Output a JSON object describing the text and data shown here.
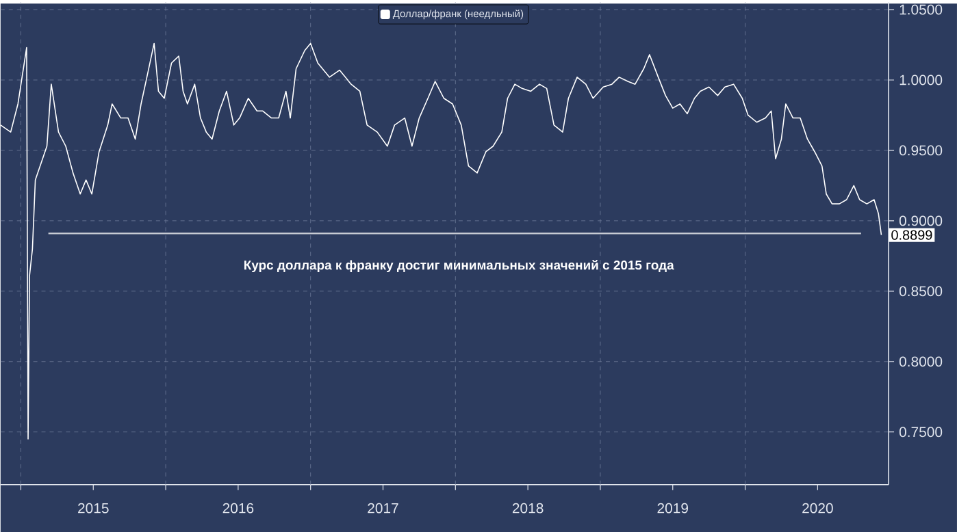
{
  "chart_data": {
    "type": "line",
    "xlim": [
      2014.86,
      2020.99
    ],
    "xticks": [
      {
        "value": 2015,
        "label": null
      },
      {
        "value": 2015.5,
        "label": "2015"
      },
      {
        "value": 2016,
        "label": null
      },
      {
        "value": 2016.5,
        "label": "2016"
      },
      {
        "value": 2017,
        "label": null
      },
      {
        "value": 2017.5,
        "label": "2017"
      },
      {
        "value": 2018,
        "label": null
      },
      {
        "value": 2018.5,
        "label": "2018"
      },
      {
        "value": 2019,
        "label": null
      },
      {
        "value": 2019.5,
        "label": "2019"
      },
      {
        "value": 2020,
        "label": null
      },
      {
        "value": 2020.5,
        "label": "2020"
      }
    ],
    "ylim": [
      0.7126,
      1.0553
    ],
    "yticks": [
      {
        "value": 0.75,
        "label": "0.7500"
      },
      {
        "value": 0.8,
        "label": "0.8000"
      },
      {
        "value": 0.85,
        "label": "0.8500"
      },
      {
        "value": 0.9,
        "label": "0.9000"
      },
      {
        "value": 0.95,
        "label": "0.9500"
      },
      {
        "value": 1.0,
        "label": "1.0000"
      },
      {
        "value": 1.05,
        "label": "1.0500"
      }
    ],
    "grid": true,
    "legend": "top",
    "marker": "none",
    "line_style": "solid",
    "annotations": [
      "Курс доллара к франку достиг минимальных значений с 2015 года",
      {
        "text": "0.8899",
        "x": 2020.94,
        "y": 0.8899
      }
    ],
    "series": [
      {
        "name": "Доллар/франк (неедльный)",
        "color": "#ffffff",
        "x": [
          2014.86,
          2014.93,
          2014.98,
          2015.04,
          2015.05,
          2015.06,
          2015.08,
          2015.1,
          2015.15,
          2015.18,
          2015.21,
          2015.26,
          2015.31,
          2015.36,
          2015.41,
          2015.45,
          2015.49,
          2015.54,
          2015.6,
          2015.63,
          2015.69,
          2015.74,
          2015.79,
          2015.83,
          2015.87,
          2015.92,
          2015.95,
          2015.99,
          2016.04,
          2016.09,
          2016.12,
          2016.15,
          2016.2,
          2016.24,
          2016.28,
          2016.32,
          2016.37,
          2016.42,
          2016.47,
          2016.51,
          2016.57,
          2016.63,
          2016.67,
          2016.73,
          2016.78,
          2016.83,
          2016.86,
          2016.9,
          2016.96,
          2017.0,
          2017.05,
          2017.13,
          2017.2,
          2017.28,
          2017.34,
          2017.39,
          2017.46,
          2017.53,
          2017.58,
          2017.65,
          2017.7,
          2017.75,
          2017.81,
          2017.86,
          2017.92,
          2017.98,
          2018.04,
          2018.09,
          2018.15,
          2018.21,
          2018.26,
          2018.32,
          2018.36,
          2018.41,
          2018.46,
          2018.52,
          2018.58,
          2018.63,
          2018.68,
          2018.74,
          2018.78,
          2018.84,
          2018.9,
          2018.95,
          2019.02,
          2019.08,
          2019.13,
          2019.19,
          2019.24,
          2019.3,
          2019.34,
          2019.4,
          2019.45,
          2019.5,
          2019.55,
          2019.6,
          2019.65,
          2019.69,
          2019.75,
          2019.81,
          2019.86,
          2019.92,
          2019.98,
          2020.02,
          2020.08,
          2020.14,
          2020.18,
          2020.21,
          2020.25,
          2020.28,
          2020.33,
          2020.38,
          2020.43,
          2020.48,
          2020.53,
          2020.56,
          2020.6,
          2020.65,
          2020.7,
          2020.75,
          2020.79,
          2020.84,
          2020.89,
          2020.92,
          2020.94
        ],
        "values": [
          0.968,
          0.963,
          0.983,
          1.023,
          0.745,
          0.861,
          0.88,
          0.929,
          0.944,
          0.953,
          0.997,
          0.963,
          0.953,
          0.934,
          0.919,
          0.929,
          0.919,
          0.949,
          0.968,
          0.983,
          0.973,
          0.973,
          0.958,
          0.983,
          1.002,
          1.026,
          0.992,
          0.987,
          1.012,
          1.017,
          0.992,
          0.983,
          0.997,
          0.973,
          0.963,
          0.958,
          0.978,
          0.992,
          0.968,
          0.973,
          0.987,
          0.978,
          0.978,
          0.973,
          0.973,
          0.992,
          0.973,
          1.008,
          1.021,
          1.026,
          1.012,
          1.002,
          1.007,
          0.997,
          0.992,
          0.968,
          0.963,
          0.953,
          0.968,
          0.973,
          0.953,
          0.973,
          0.987,
          0.999,
          0.987,
          0.983,
          0.968,
          0.939,
          0.934,
          0.949,
          0.953,
          0.963,
          0.987,
          0.997,
          0.994,
          0.992,
          0.997,
          0.994,
          0.968,
          0.963,
          0.987,
          1.002,
          0.997,
          0.987,
          0.995,
          0.997,
          1.002,
          0.999,
          0.997,
          1.008,
          1.018,
          1.002,
          0.989,
          0.98,
          0.983,
          0.976,
          0.987,
          0.992,
          0.995,
          0.989,
          0.995,
          0.997,
          0.987,
          0.975,
          0.97,
          0.973,
          0.978,
          0.944,
          0.958,
          0.983,
          0.973,
          0.973,
          0.958,
          0.949,
          0.939,
          0.919,
          0.912,
          0.912,
          0.915,
          0.925,
          0.915,
          0.912,
          0.915,
          0.905,
          0.8899
        ]
      },
      {
        "type": "line",
        "color": "#c8ccd4",
        "x": [
          2015.19,
          2020.8
        ],
        "values": [
          0.891,
          0.891
        ]
      }
    ]
  }
}
